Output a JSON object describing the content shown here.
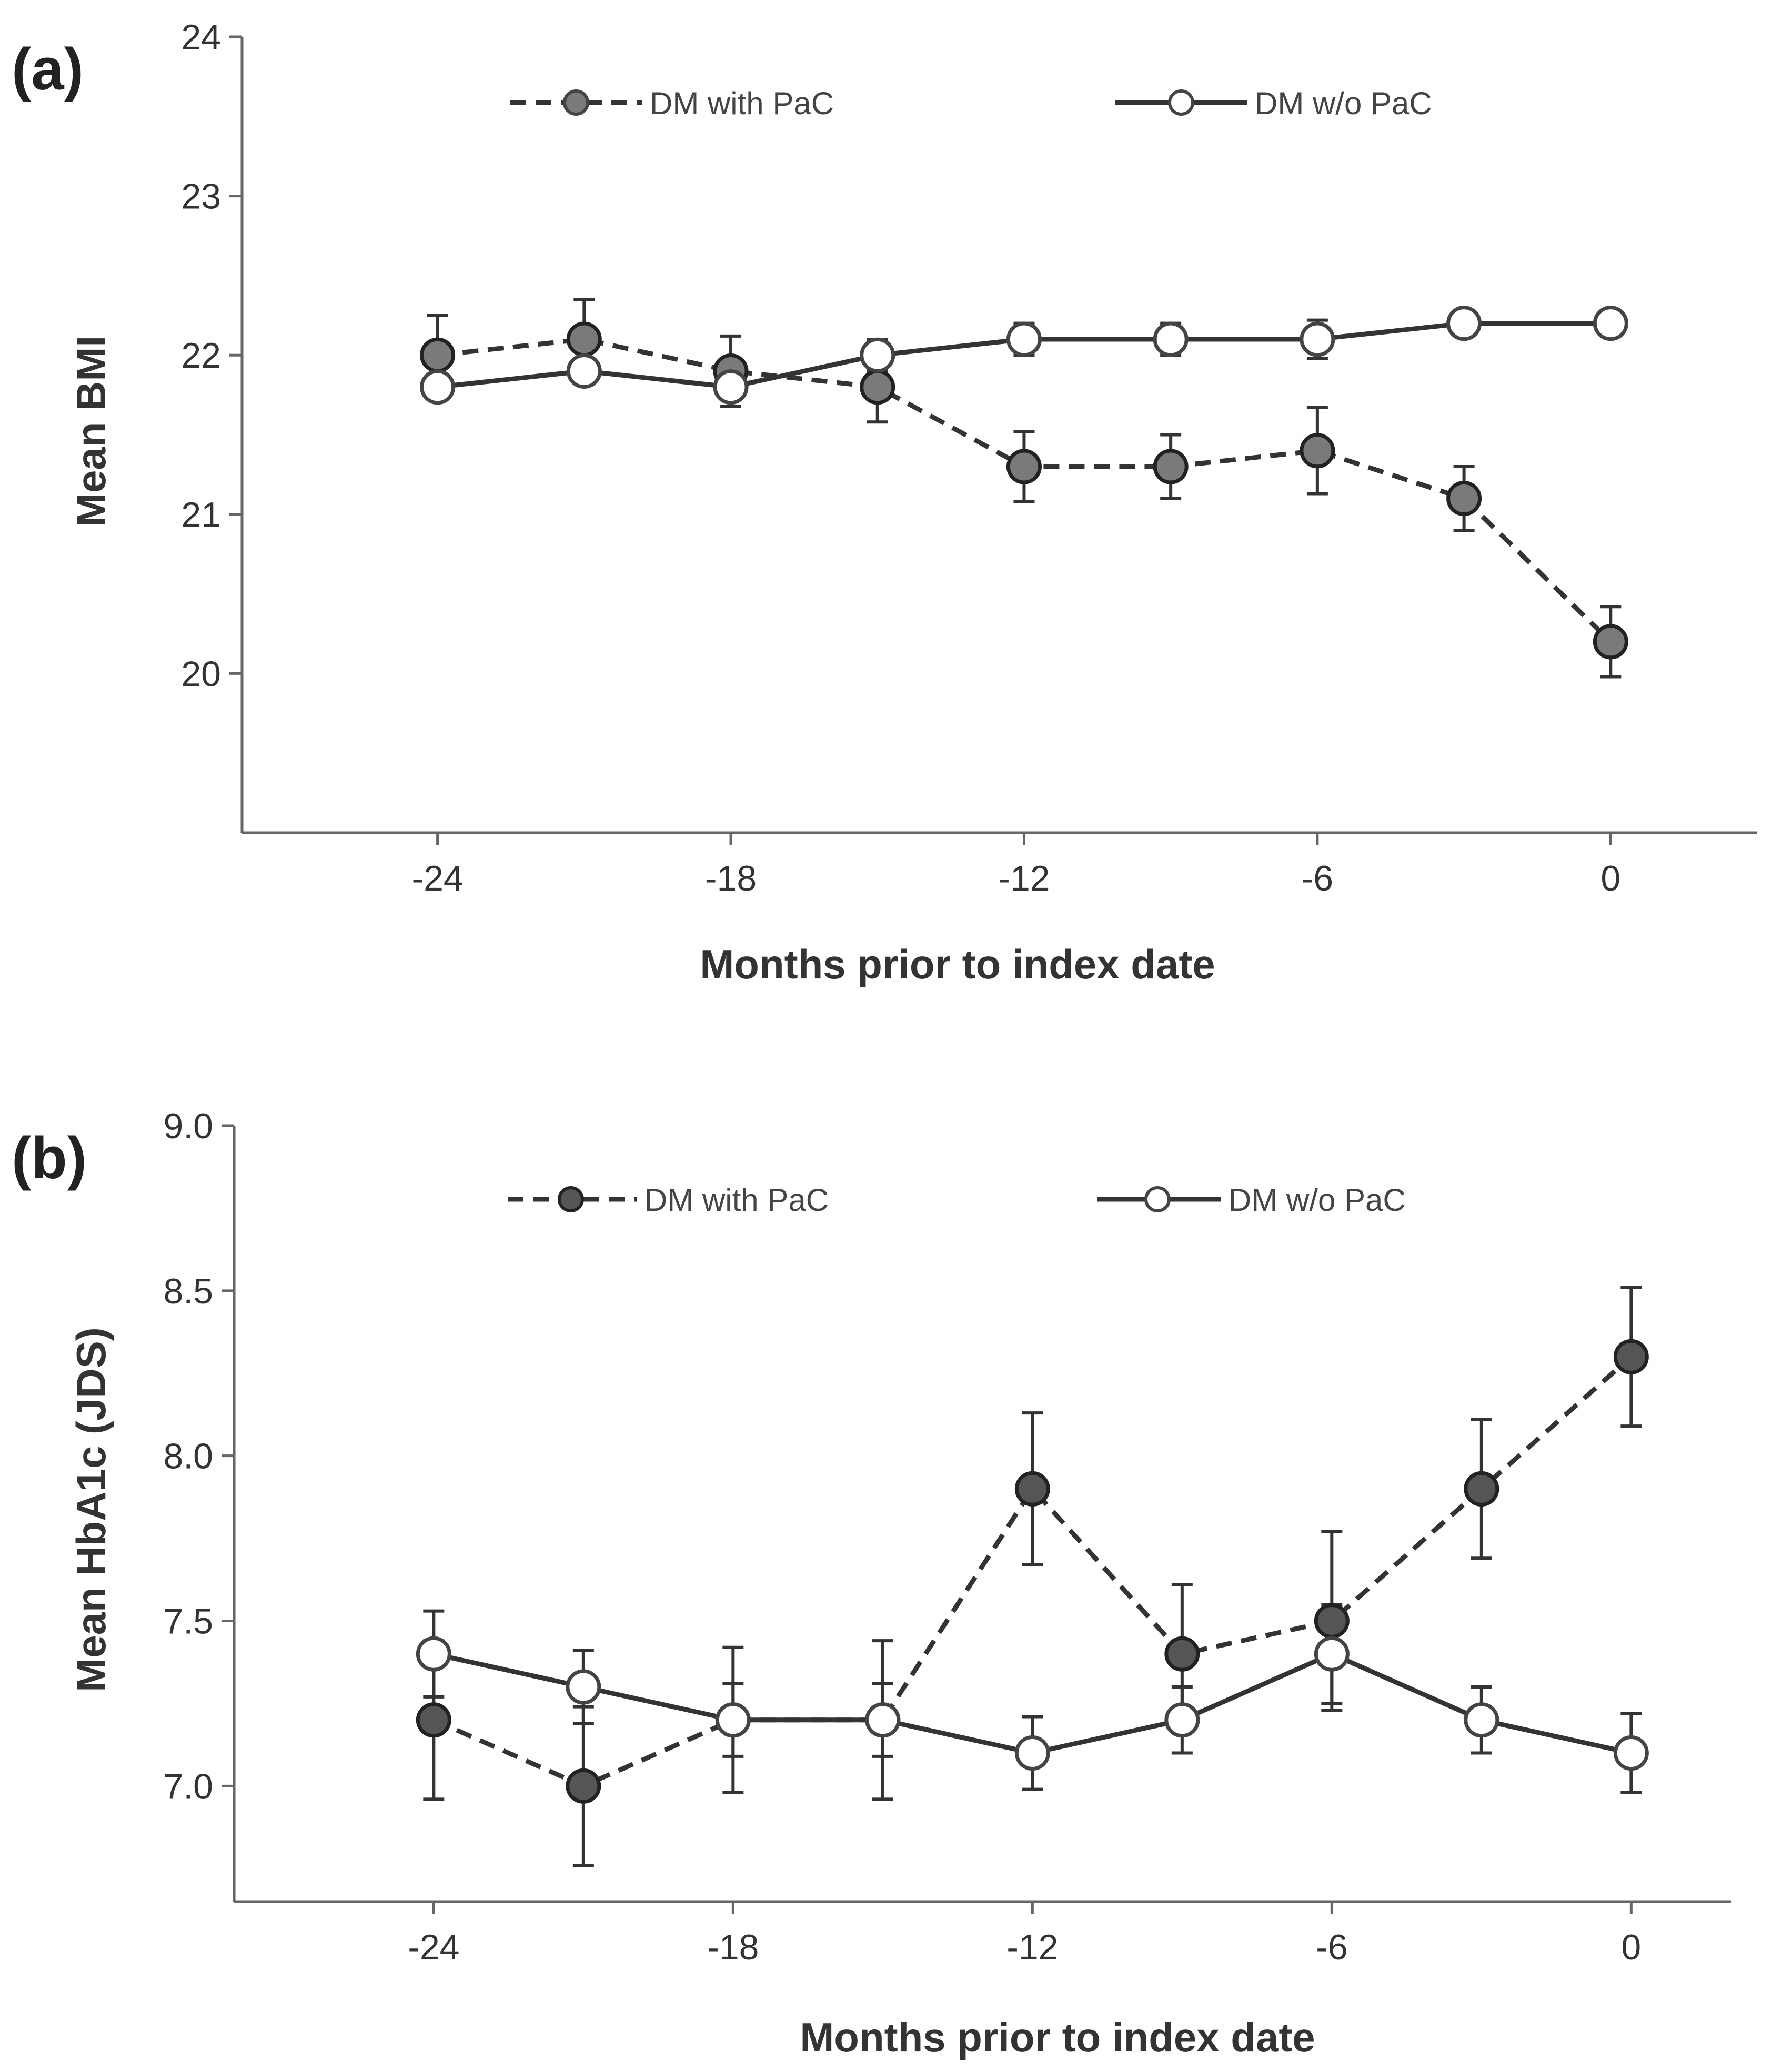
{
  "chart_data": [
    {
      "type": "line",
      "panel_label": "(a)",
      "xlabel": "Months prior to index date",
      "ylabel": "Mean BMI",
      "x": [
        -24,
        -21,
        -18,
        -15,
        -12,
        -9,
        -6,
        -3,
        0
      ],
      "x_ticks": [
        -24,
        -18,
        -12,
        -6,
        0
      ],
      "x_tick_labels": [
        "-24",
        "-18",
        "-12",
        "-6",
        "0"
      ],
      "xlim": [
        -28,
        3
      ],
      "y_ticks": [
        20,
        21,
        22,
        23,
        24
      ],
      "y_tick_labels": [
        "20",
        "21",
        "22",
        "23",
        "24"
      ],
      "ylim": [
        19,
        24
      ],
      "legend_position": "top",
      "series": [
        {
          "name": "DM with PaC",
          "style": "dashed",
          "marker_fill": "#7a7a7a",
          "values": [
            22.0,
            22.1,
            21.9,
            21.8,
            21.3,
            21.3,
            21.4,
            21.1,
            20.2
          ],
          "error": [
            0.25,
            0.25,
            0.22,
            0.22,
            0.22,
            0.2,
            0.27,
            0.2,
            0.22
          ]
        },
        {
          "name": "DM w/o PaC",
          "style": "solid",
          "marker_fill": "#ffffff",
          "values": [
            21.8,
            21.9,
            21.8,
            22.0,
            22.1,
            22.1,
            22.1,
            22.2,
            22.2
          ],
          "error": [
            0.08,
            0.08,
            0.08,
            0.1,
            0.1,
            0.1,
            0.12,
            0.08,
            0.08
          ]
        }
      ]
    },
    {
      "type": "line",
      "panel_label": "(b)",
      "xlabel": "Months prior to index date",
      "ylabel": "Mean HbA1c (JDS)",
      "x": [
        -24,
        -21,
        -18,
        -15,
        -12,
        -9,
        -6,
        -3,
        0
      ],
      "x_ticks": [
        -24,
        -18,
        -12,
        -6,
        0
      ],
      "x_tick_labels": [
        "-24",
        "-18",
        "-12",
        "-6",
        "0"
      ],
      "xlim": [
        -28,
        2
      ],
      "y_ticks": [
        7.0,
        7.5,
        8.0,
        8.5,
        9.0
      ],
      "y_tick_labels": [
        "7.0",
        "7.5",
        "8.0",
        "8.5",
        "9.0"
      ],
      "ylim": [
        6.65,
        9.0
      ],
      "legend_position": "top",
      "series": [
        {
          "name": "DM with PaC",
          "style": "dashed",
          "marker_fill": "#555555",
          "values": [
            7.2,
            7.0,
            7.2,
            7.2,
            7.9,
            7.4,
            7.5,
            7.9,
            8.3
          ],
          "error": [
            0.24,
            0.24,
            0.22,
            0.24,
            0.23,
            0.21,
            0.27,
            0.21,
            0.21
          ]
        },
        {
          "name": "DM w/o PaC",
          "style": "solid",
          "marker_fill": "#ffffff",
          "values": [
            7.4,
            7.3,
            7.2,
            7.2,
            7.1,
            7.2,
            7.4,
            7.2,
            7.1
          ],
          "error": [
            0.13,
            0.11,
            0.11,
            0.11,
            0.11,
            0.1,
            0.15,
            0.1,
            0.12
          ]
        }
      ]
    }
  ]
}
